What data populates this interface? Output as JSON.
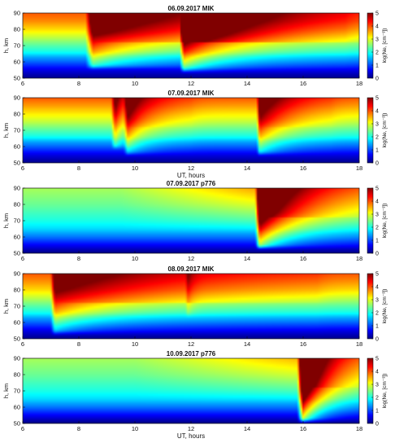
{
  "chart_data": {
    "type": "heatmap",
    "x_ticks": [
      "6",
      "8",
      "10",
      "12",
      "14",
      "16",
      "18"
    ],
    "y_ticks": [
      "50",
      "60",
      "70",
      "80",
      "90"
    ],
    "ylabel": "h, km",
    "colorbar_ticks": [
      "0",
      "1",
      "2",
      "3",
      "4",
      "5"
    ],
    "colorbar_label": "log(Ne, [cm⁻³])",
    "xlim": [
      6,
      18
    ],
    "ylim": [
      50,
      90
    ],
    "clim": [
      0,
      5
    ],
    "colormap": "jet",
    "panels": [
      {
        "title": "06.09.2017   MIK",
        "xlabel": "",
        "background_profile": [
          [
            50,
            0.05
          ],
          [
            55,
            0.5
          ],
          [
            60,
            1.1
          ],
          [
            63,
            1.45
          ],
          [
            66,
            1.95
          ],
          [
            70,
            2.3
          ],
          [
            75,
            2.8
          ],
          [
            80,
            3.3
          ],
          [
            85,
            3.7
          ],
          [
            90,
            3.95
          ]
        ],
        "events": [
          {
            "start": 8.25,
            "peak": 8.5,
            "end": 18.0,
            "strength": 1.0,
            "floor_km": 58.0
          },
          {
            "start": 11.6,
            "peak": 11.75,
            "end": 17.5,
            "strength": 1.1,
            "floor_km": 56.0
          }
        ]
      },
      {
        "title": "07.09.2017   MIK",
        "xlabel": "UT, hours",
        "background_profile": [
          [
            50,
            0.05
          ],
          [
            55,
            0.5
          ],
          [
            60,
            1.1
          ],
          [
            63,
            1.45
          ],
          [
            66,
            1.95
          ],
          [
            70,
            2.3
          ],
          [
            75,
            2.8
          ],
          [
            80,
            3.2
          ],
          [
            85,
            3.6
          ],
          [
            90,
            3.95
          ]
        ],
        "events": [
          {
            "start": 9.15,
            "peak": 9.3,
            "end": 10.0,
            "strength": 0.7,
            "floor_km": 61.0
          },
          {
            "start": 9.6,
            "peak": 9.75,
            "end": 12.0,
            "strength": 0.75,
            "floor_km": 57.0
          },
          {
            "start": 14.35,
            "peak": 14.45,
            "end": 17.0,
            "strength": 0.9,
            "floor_km": 57.0
          }
        ]
      },
      {
        "title": "07.09.2017   p776",
        "xlabel": "",
        "background_profile": [
          [
            50,
            0.0
          ],
          [
            55,
            0.6
          ],
          [
            60,
            1.2
          ],
          [
            65,
            1.7
          ],
          [
            70,
            2.0
          ],
          [
            75,
            2.2
          ],
          [
            80,
            2.4
          ],
          [
            85,
            2.55
          ],
          [
            90,
            2.7
          ]
        ],
        "rise": {
          "start": 9.5,
          "end": 14.3,
          "amount": 0.9
        },
        "events": [
          {
            "start": 14.3,
            "peak": 14.45,
            "end": 18.0,
            "strength": 1.6,
            "floor_km": 55.0
          }
        ]
      },
      {
        "title": "08.09.2017   MIK",
        "xlabel": "",
        "background_profile": [
          [
            50,
            0.05
          ],
          [
            55,
            0.5
          ],
          [
            60,
            1.1
          ],
          [
            63,
            1.45
          ],
          [
            66,
            1.95
          ],
          [
            70,
            2.3
          ],
          [
            75,
            2.8
          ],
          [
            80,
            3.3
          ],
          [
            85,
            3.65
          ],
          [
            90,
            3.95
          ]
        ],
        "events": [
          {
            "start": 7.0,
            "peak": 7.15,
            "end": 16.5,
            "strength": 0.85,
            "floor_km": 55.0
          },
          {
            "start": 11.8,
            "peak": 11.9,
            "end": 12.3,
            "strength": 0.3,
            "floor_km": 66.0
          }
        ]
      },
      {
        "title": "10.09.2017   p776",
        "xlabel": "UT, hours",
        "background_profile": [
          [
            50,
            0.0
          ],
          [
            55,
            0.6
          ],
          [
            60,
            1.2
          ],
          [
            65,
            1.7
          ],
          [
            70,
            2.0
          ],
          [
            75,
            2.2
          ],
          [
            80,
            2.4
          ],
          [
            85,
            2.55
          ],
          [
            90,
            2.7
          ]
        ],
        "rise": {
          "start": 10.0,
          "end": 15.8,
          "amount": 0.8
        },
        "events": [
          {
            "start": 15.8,
            "peak": 16.0,
            "end": 18.0,
            "strength": 1.9,
            "floor_km": 53.0
          }
        ]
      }
    ]
  }
}
